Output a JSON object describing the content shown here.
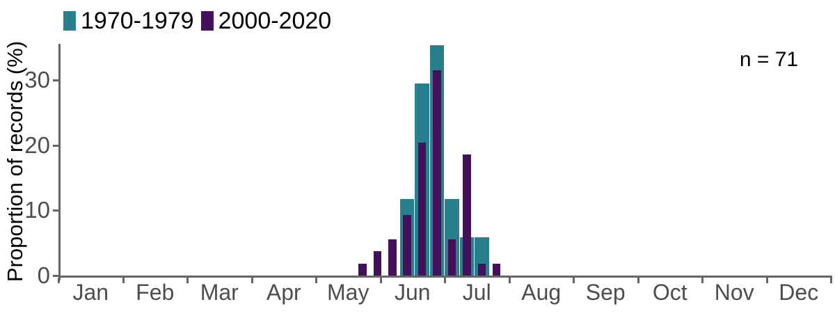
{
  "legend": {
    "items": [
      {
        "label": "1970-1979",
        "color": "#2a7f8e"
      },
      {
        "label": "2000-2020",
        "color": "#440f5b"
      }
    ]
  },
  "annotation": {
    "text": "n = 71"
  },
  "y_axis": {
    "title": "Proportion of records (%)",
    "tick_labels": [
      "0",
      "10",
      "20",
      "30"
    ]
  },
  "x_axis": {
    "month_labels": [
      "Jan",
      "Feb",
      "Mar",
      "Apr",
      "May",
      "Jun",
      "Jul",
      "Aug",
      "Sep",
      "Oct",
      "Nov",
      "Dec"
    ]
  },
  "chart_data": {
    "type": "bar",
    "title": "",
    "xlabel": "",
    "ylabel": "Proportion of records (%)",
    "annotation": "n = 71",
    "sample_size_total": 71,
    "x_categories_months": [
      "Jan",
      "Feb",
      "Mar",
      "Apr",
      "May",
      "Jun",
      "Jul",
      "Aug",
      "Sep",
      "Oct",
      "Nov",
      "Dec"
    ],
    "y_ticks": [
      0,
      10,
      20,
      30
    ],
    "ylim": [
      0,
      35.3
    ],
    "grid": false,
    "legend_position": "top-left",
    "axis_color": "#666666",
    "tick_label_color": "#4d4d4d",
    "bin_width_days": 7,
    "bin_centers_month_decimal": [
      4.724,
      4.956,
      5.187,
      5.418,
      5.65,
      5.881,
      6.113,
      6.344,
      6.576,
      6.807
    ],
    "series": [
      {
        "name": "1970-1979",
        "color": "#2a7f8e",
        "values": [
          0,
          0,
          0,
          11.76,
          29.41,
          35.29,
          11.76,
          5.88,
          5.88,
          0
        ]
      },
      {
        "name": "2000-2020",
        "color": "#440f5b",
        "values": [
          1.85,
          3.7,
          5.56,
          9.26,
          20.37,
          31.48,
          5.56,
          18.52,
          1.85,
          1.85
        ]
      }
    ]
  }
}
